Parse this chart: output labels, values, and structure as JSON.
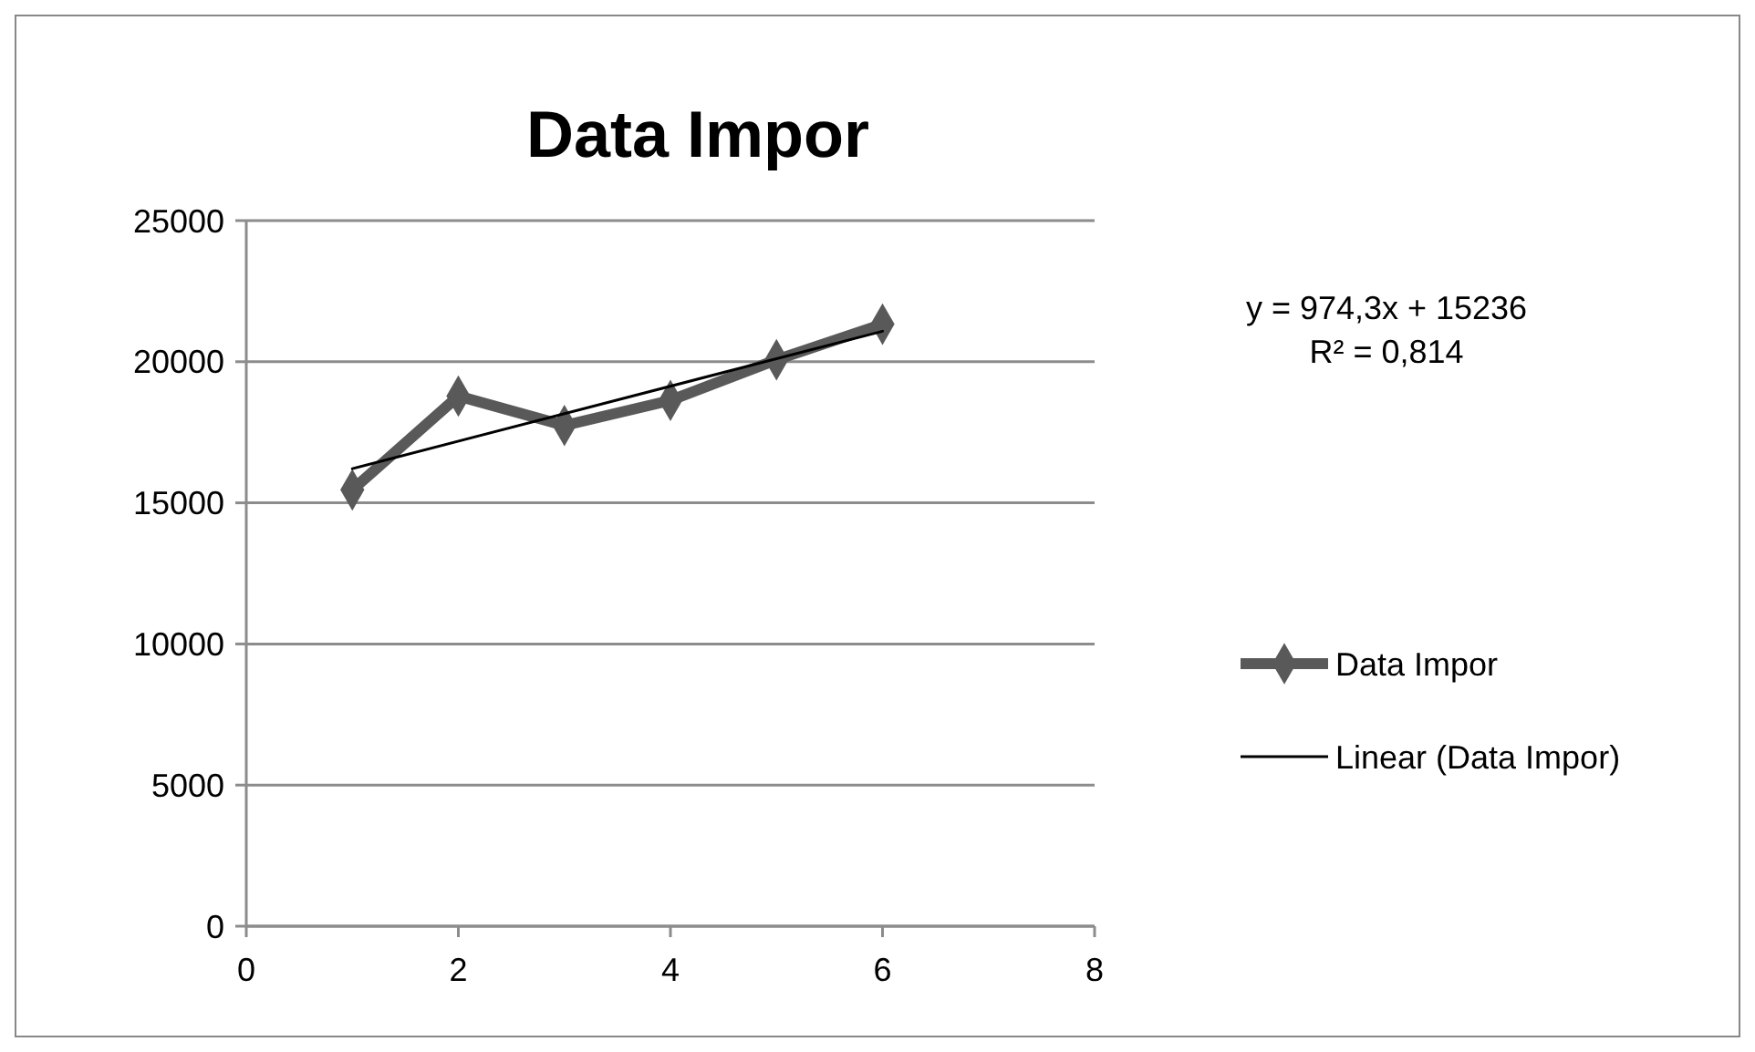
{
  "chart_data": {
    "type": "line",
    "title": "Data Impor",
    "x": [
      1,
      2,
      3,
      4,
      5,
      6
    ],
    "series": [
      {
        "name": "Data Impor",
        "color": "#595959",
        "values": [
          15460,
          18780,
          17740,
          18630,
          20070,
          21330
        ],
        "marker": "diamond"
      },
      {
        "name": "Linear (Data Impor)",
        "type": "line",
        "color": "#000000",
        "x": [
          1,
          6
        ],
        "values": [
          16210,
          21080
        ],
        "marker": "none"
      }
    ],
    "xlim": [
      0,
      8
    ],
    "xticks": [
      0,
      2,
      4,
      6,
      8
    ],
    "ylim": [
      0,
      25000
    ],
    "yticks": [
      0,
      5000,
      10000,
      15000,
      20000,
      25000
    ],
    "grid": "y",
    "legend": "right",
    "annotations": [
      "y = 974,3x + 15236",
      "R² = 0,814"
    ]
  }
}
